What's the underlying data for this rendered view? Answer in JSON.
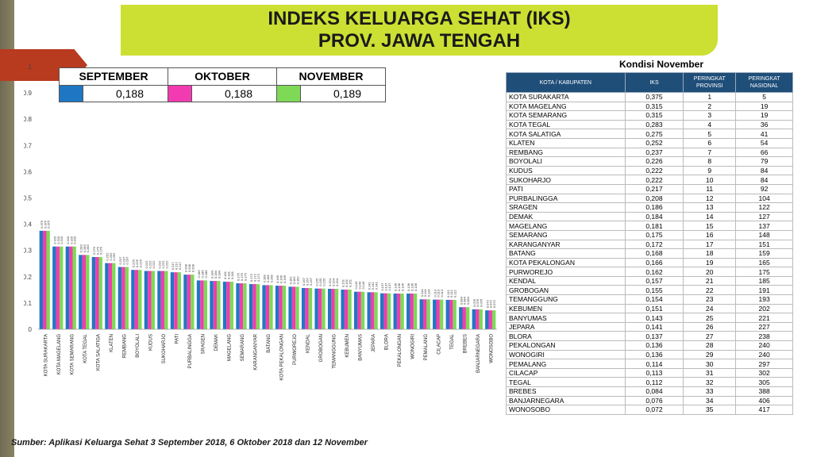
{
  "header": {
    "title_line1": "INDEKS KELUARGA SEHAT (IKS)",
    "title_line2": "PROV. JAWA TENGAH"
  },
  "periods": [
    {
      "label": "SEPTEMBER",
      "value": "0,188",
      "color": "#1f77c4"
    },
    {
      "label": "OKTOBER",
      "value": "0,188",
      "color": "#f23bb0"
    },
    {
      "label": "NOVEMBER",
      "value": "0,189",
      "color": "#7ed957"
    }
  ],
  "chart_data": {
    "type": "bar",
    "categories": [
      "KOTA SURAKARTA",
      "KOTA MAGELANG",
      "KOTA SEMARANG",
      "KOTA TEGAL",
      "KOTA SALATIGA",
      "KLATEN",
      "REMBANG",
      "BOYOLALI",
      "KUDUS",
      "SUKOHARJO",
      "PATI",
      "PURBALINGGA",
      "SRAGEN",
      "DEMAK",
      "MAGELANG",
      "SEMARANG",
      "KARANGANYAR",
      "BATANG",
      "KOTA PEKALONGAN",
      "PURWOREJO",
      "KENDAL",
      "GROBOGAN",
      "TEMANGGUNG",
      "KEBUMEN",
      "BANYUMAS",
      "JEPARA",
      "BLORA",
      "PEKALONGAN",
      "WONOGIRI",
      "PEMALANG",
      "CILACAP",
      "TEGAL",
      "BREBES",
      "BANJARNEGARA",
      "WONOSOBO"
    ],
    "series": [
      {
        "name": "SEPTEMBER",
        "color": "#1f77c4",
        "values": [
          0.375,
          0.315,
          0.315,
          0.283,
          0.275,
          0.252,
          0.237,
          0.226,
          0.222,
          0.222,
          0.217,
          0.208,
          0.186,
          0.184,
          0.181,
          0.175,
          0.172,
          0.168,
          0.166,
          0.162,
          0.157,
          0.155,
          0.154,
          0.151,
          0.143,
          0.141,
          0.137,
          0.136,
          0.136,
          0.114,
          0.113,
          0.112,
          0.084,
          0.076,
          0.072
        ]
      },
      {
        "name": "OKTOBER",
        "color": "#f23bb0",
        "values": [
          0.375,
          0.315,
          0.315,
          0.283,
          0.275,
          0.252,
          0.237,
          0.226,
          0.222,
          0.222,
          0.217,
          0.208,
          0.186,
          0.184,
          0.181,
          0.175,
          0.172,
          0.168,
          0.166,
          0.162,
          0.157,
          0.155,
          0.154,
          0.151,
          0.143,
          0.141,
          0.137,
          0.136,
          0.136,
          0.114,
          0.113,
          0.112,
          0.084,
          0.076,
          0.072
        ]
      },
      {
        "name": "NOVEMBER",
        "color": "#7ed957",
        "values": [
          0.375,
          0.315,
          0.315,
          0.283,
          0.275,
          0.252,
          0.237,
          0.226,
          0.222,
          0.222,
          0.217,
          0.208,
          0.186,
          0.184,
          0.181,
          0.175,
          0.172,
          0.168,
          0.166,
          0.162,
          0.157,
          0.155,
          0.154,
          0.151,
          0.143,
          0.141,
          0.137,
          0.136,
          0.136,
          0.114,
          0.113,
          0.112,
          0.084,
          0.076,
          0.072
        ]
      }
    ],
    "ylim": [
      0,
      1
    ],
    "yticks": [
      "0",
      "0.1",
      "0.2",
      "0.3",
      "0.4",
      "0.5",
      "0.6",
      "0.7",
      "0.8",
      "0.9",
      "1"
    ],
    "grid": false
  },
  "ranking": {
    "title": "Kondisi November",
    "headers": [
      "KOTA / KABUPATEN",
      "IKS",
      "PERINGKAT PROVINSI",
      "PERINGKAT NASIONAL"
    ],
    "rows": [
      [
        "KOTA SURAKARTA",
        "0,375",
        "1",
        "5"
      ],
      [
        "KOTA MAGELANG",
        "0,315",
        "2",
        "19"
      ],
      [
        "KOTA SEMARANG",
        "0,315",
        "3",
        "19"
      ],
      [
        "KOTA TEGAL",
        "0,283",
        "4",
        "36"
      ],
      [
        "KOTA SALATIGA",
        "0,275",
        "5",
        "41"
      ],
      [
        "KLATEN",
        "0,252",
        "6",
        "54"
      ],
      [
        "REMBANG",
        "0,237",
        "7",
        "66"
      ],
      [
        "BOYOLALI",
        "0,226",
        "8",
        "79"
      ],
      [
        "KUDUS",
        "0,222",
        "9",
        "84"
      ],
      [
        "SUKOHARJO",
        "0,222",
        "10",
        "84"
      ],
      [
        "PATI",
        "0,217",
        "11",
        "92"
      ],
      [
        "PURBALINGGA",
        "0,208",
        "12",
        "104"
      ],
      [
        "SRAGEN",
        "0,186",
        "13",
        "122"
      ],
      [
        "DEMAK",
        "0,184",
        "14",
        "127"
      ],
      [
        "MAGELANG",
        "0,181",
        "15",
        "137"
      ],
      [
        "SEMARANG",
        "0,175",
        "16",
        "148"
      ],
      [
        "KARANGANYAR",
        "0,172",
        "17",
        "151"
      ],
      [
        "BATANG",
        "0,168",
        "18",
        "159"
      ],
      [
        "KOTA PEKALONGAN",
        "0,166",
        "19",
        "165"
      ],
      [
        "PURWOREJO",
        "0,162",
        "20",
        "175"
      ],
      [
        "KENDAL",
        "0,157",
        "21",
        "185"
      ],
      [
        "GROBOGAN",
        "0,155",
        "22",
        "191"
      ],
      [
        "TEMANGGUNG",
        "0,154",
        "23",
        "193"
      ],
      [
        "KEBUMEN",
        "0,151",
        "24",
        "202"
      ],
      [
        "BANYUMAS",
        "0,143",
        "25",
        "221"
      ],
      [
        "JEPARA",
        "0,141",
        "26",
        "227"
      ],
      [
        "BLORA",
        "0,137",
        "27",
        "238"
      ],
      [
        "PEKALONGAN",
        "0,136",
        "28",
        "240"
      ],
      [
        "WONOGIRI",
        "0,136",
        "29",
        "240"
      ],
      [
        "PEMALANG",
        "0,114",
        "30",
        "297"
      ],
      [
        "CILACAP",
        "0,113",
        "31",
        "302"
      ],
      [
        "TEGAL",
        "0,112",
        "32",
        "305"
      ],
      [
        "BREBES",
        "0,084",
        "33",
        "388"
      ],
      [
        "BANJARNEGARA",
        "0,076",
        "34",
        "406"
      ],
      [
        "WONOSOBO",
        "0,072",
        "35",
        "417"
      ]
    ]
  },
  "footer": {
    "source": "Sumber: Aplikasi Keluarga Sehat  3 September 2018, 6 Oktober 2018 dan 12 November"
  }
}
